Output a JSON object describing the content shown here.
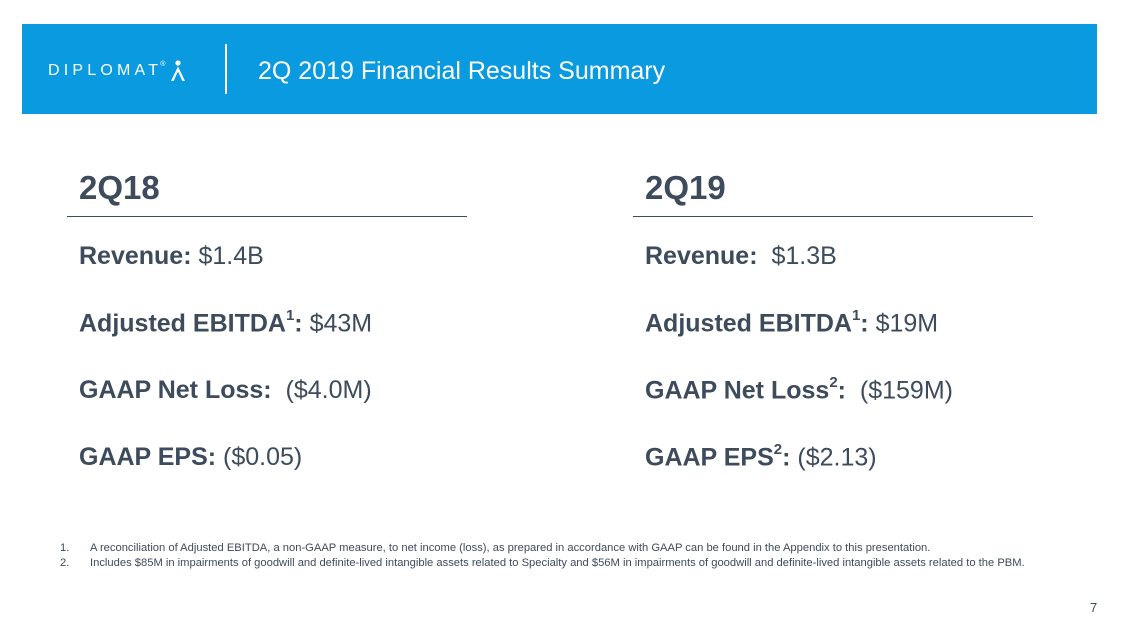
{
  "header": {
    "logo_text": "DIPLOMAT",
    "logo_reg": "®",
    "title": "2Q 2019 Financial Results Summary",
    "bg_color": "#0a9ae0"
  },
  "columns": [
    {
      "title": "2Q18",
      "metrics": [
        {
          "label": "Revenue:",
          "sup": "",
          "colon": "",
          "value": " $1.4B"
        },
        {
          "label": "Adjusted EBITDA",
          "sup": "1",
          "colon": ":",
          "value": " $43M"
        },
        {
          "label": "GAAP Net Loss:",
          "sup": "",
          "colon": "",
          "value": "  ($4.0M)"
        },
        {
          "label": "GAAP EPS:",
          "sup": "",
          "colon": "",
          "value": " ($0.05)"
        }
      ]
    },
    {
      "title": "2Q19",
      "metrics": [
        {
          "label": "Revenue:",
          "sup": "",
          "colon": "",
          "value": "  $1.3B"
        },
        {
          "label": "Adjusted EBITDA",
          "sup": "1",
          "colon": ":",
          "value": " $19M"
        },
        {
          "label": "GAAP Net Loss",
          "sup": "2",
          "colon": ":",
          "value": "  ($159M)"
        },
        {
          "label": "GAAP EPS",
          "sup": "2",
          "colon": ":",
          "value": " ($2.13)"
        }
      ]
    }
  ],
  "footnotes": [
    {
      "num": "1.",
      "text": "A reconciliation of Adjusted EBITDA, a non-GAAP measure, to net income (loss), as prepared in accordance with GAAP can be found in the Appendix to this presentation."
    },
    {
      "num": "2.",
      "text": "Includes $85M in impairments of goodwill and definite-lived intangible assets related to Specialty and $56M in impairments of goodwill and definite-lived intangible assets related to the PBM."
    }
  ],
  "page_number": "7"
}
